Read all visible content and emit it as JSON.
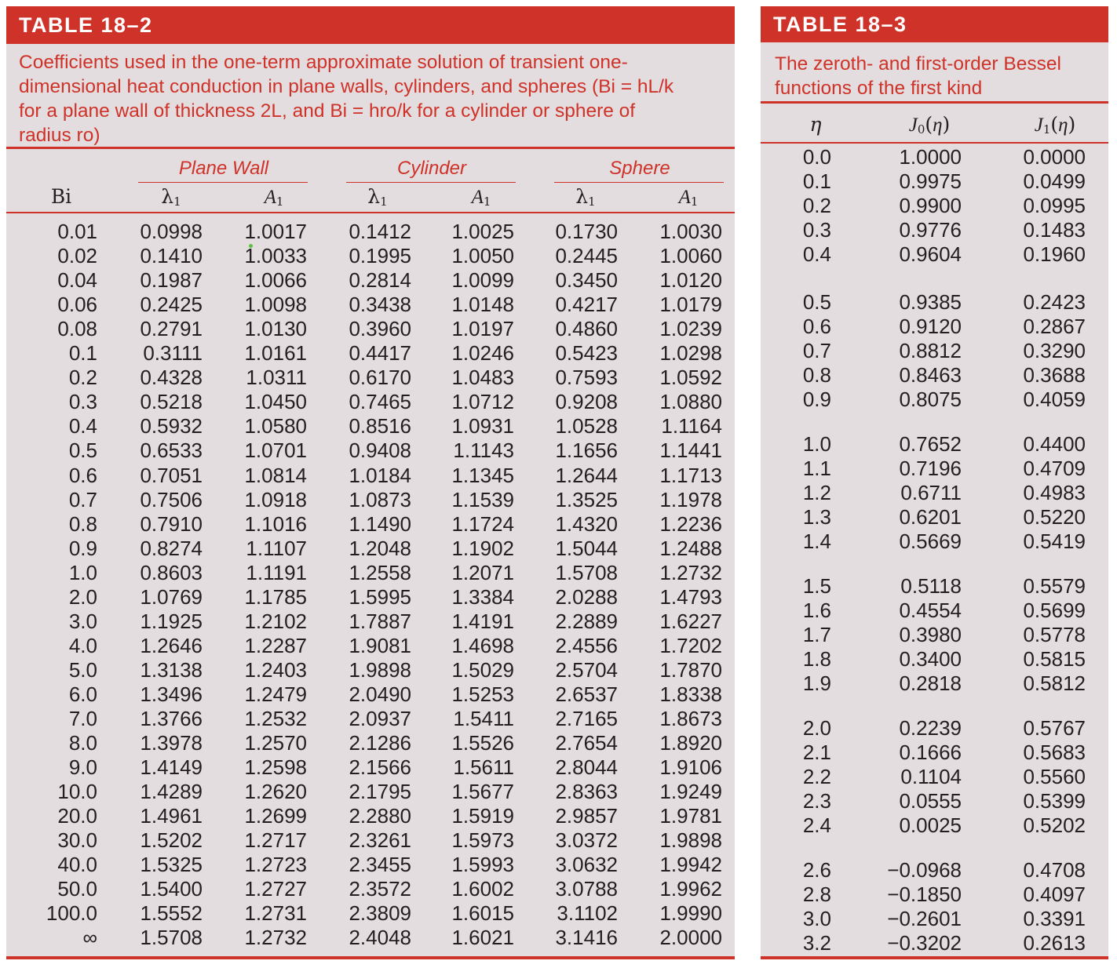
{
  "table_18_2": {
    "title": "TABLE 18–2",
    "caption_lines": [
      "Coefficients used in the one-term approximate solution of transient one-",
      "dimensional heat conduction in plane walls, cylinders, and spheres (Bi = hL/k",
      "for a plane wall of thickness 2L, and Bi = hro/k for a cylinder or sphere of",
      "radius ro)"
    ],
    "groups": [
      "Plane Wall",
      "Cylinder",
      "Sphere"
    ],
    "headers": [
      "Bi",
      "λ1",
      "A1",
      "λ1",
      "A1",
      "λ1",
      "A1"
    ],
    "rows": [
      [
        "0.01",
        "0.0998",
        "1.0017",
        "0.1412",
        "1.0025",
        "0.1730",
        "1.0030"
      ],
      [
        "0.02",
        "0.1410",
        "1.0033",
        "0.1995",
        "1.0050",
        "0.2445",
        "1.0060"
      ],
      [
        "0.04",
        "0.1987",
        "1.0066",
        "0.2814",
        "1.0099",
        "0.3450",
        "1.0120"
      ],
      [
        "0.06",
        "0.2425",
        "1.0098",
        "0.3438",
        "1.0148",
        "0.4217",
        "1.0179"
      ],
      [
        "0.08",
        "0.2791",
        "1.0130",
        "0.3960",
        "1.0197",
        "0.4860",
        "1.0239"
      ],
      [
        "0.1",
        "0.3111",
        "1.0161",
        "0.4417",
        "1.0246",
        "0.5423",
        "1.0298"
      ],
      [
        "0.2",
        "0.4328",
        "1.0311",
        "0.6170",
        "1.0483",
        "0.7593",
        "1.0592"
      ],
      [
        "0.3",
        "0.5218",
        "1.0450",
        "0.7465",
        "1.0712",
        "0.9208",
        "1.0880"
      ],
      [
        "0.4",
        "0.5932",
        "1.0580",
        "0.8516",
        "1.0931",
        "1.0528",
        "1.1164"
      ],
      [
        "0.5",
        "0.6533",
        "1.0701",
        "0.9408",
        "1.1143",
        "1.1656",
        "1.1441"
      ],
      [
        "0.6",
        "0.7051",
        "1.0814",
        "1.0184",
        "1.1345",
        "1.2644",
        "1.1713"
      ],
      [
        "0.7",
        "0.7506",
        "1.0918",
        "1.0873",
        "1.1539",
        "1.3525",
        "1.1978"
      ],
      [
        "0.8",
        "0.7910",
        "1.1016",
        "1.1490",
        "1.1724",
        "1.4320",
        "1.2236"
      ],
      [
        "0.9",
        "0.8274",
        "1.1107",
        "1.2048",
        "1.1902",
        "1.5044",
        "1.2488"
      ],
      [
        "1.0",
        "0.8603",
        "1.1191",
        "1.2558",
        "1.2071",
        "1.5708",
        "1.2732"
      ],
      [
        "2.0",
        "1.0769",
        "1.1785",
        "1.5995",
        "1.3384",
        "2.0288",
        "1.4793"
      ],
      [
        "3.0",
        "1.1925",
        "1.2102",
        "1.7887",
        "1.4191",
        "2.2889",
        "1.6227"
      ],
      [
        "4.0",
        "1.2646",
        "1.2287",
        "1.9081",
        "1.4698",
        "2.4556",
        "1.7202"
      ],
      [
        "5.0",
        "1.3138",
        "1.2403",
        "1.9898",
        "1.5029",
        "2.5704",
        "1.7870"
      ],
      [
        "6.0",
        "1.3496",
        "1.2479",
        "2.0490",
        "1.5253",
        "2.6537",
        "1.8338"
      ],
      [
        "7.0",
        "1.3766",
        "1.2532",
        "2.0937",
        "1.5411",
        "2.7165",
        "1.8673"
      ],
      [
        "8.0",
        "1.3978",
        "1.2570",
        "2.1286",
        "1.5526",
        "2.7654",
        "1.8920"
      ],
      [
        "9.0",
        "1.4149",
        "1.2598",
        "2.1566",
        "1.5611",
        "2.8044",
        "1.9106"
      ],
      [
        "10.0",
        "1.4289",
        "1.2620",
        "2.1795",
        "1.5677",
        "2.8363",
        "1.9249"
      ],
      [
        "20.0",
        "1.4961",
        "1.2699",
        "2.2880",
        "1.5919",
        "2.9857",
        "1.9781"
      ],
      [
        "30.0",
        "1.5202",
        "1.2717",
        "2.3261",
        "1.5973",
        "3.0372",
        "1.9898"
      ],
      [
        "40.0",
        "1.5325",
        "1.2723",
        "2.3455",
        "1.5993",
        "3.0632",
        "1.9942"
      ],
      [
        "50.0",
        "1.5400",
        "1.2727",
        "2.3572",
        "1.6002",
        "3.0788",
        "1.9962"
      ],
      [
        "100.0",
        "1.5552",
        "1.2731",
        "2.3809",
        "1.6015",
        "3.1102",
        "1.9990"
      ],
      [
        "∞",
        "1.5708",
        "1.2732",
        "2.4048",
        "1.6021",
        "3.1416",
        "2.0000"
      ]
    ]
  },
  "table_18_3": {
    "title": "TABLE 18–3",
    "caption_lines": [
      "The zeroth- and first-order Bessel",
      "functions of the first kind"
    ],
    "headers": [
      "η",
      "J0(η)",
      "J1(η)"
    ],
    "blocks": [
      [
        [
          "0.0",
          "1.0000",
          "0.0000"
        ],
        [
          "0.1",
          "0.9975",
          "0.0499"
        ],
        [
          "0.2",
          "0.9900",
          "0.0995"
        ],
        [
          "0.3",
          "0.9776",
          "0.1483"
        ],
        [
          "0.4",
          "0.9604",
          "0.1960"
        ]
      ],
      [
        [
          "0.5",
          "0.9385",
          "0.2423"
        ],
        [
          "0.6",
          "0.9120",
          "0.2867"
        ],
        [
          "0.7",
          "0.8812",
          "0.3290"
        ],
        [
          "0.8",
          "0.8463",
          "0.3688"
        ],
        [
          "0.9",
          "0.8075",
          "0.4059"
        ]
      ],
      [
        [
          "1.0",
          "0.7652",
          "0.4400"
        ],
        [
          "1.1",
          "0.7196",
          "0.4709"
        ],
        [
          "1.2",
          "0.6711",
          "0.4983"
        ],
        [
          "1.3",
          "0.6201",
          "0.5220"
        ],
        [
          "1.4",
          "0.5669",
          "0.5419"
        ]
      ],
      [
        [
          "1.5",
          "0.5118",
          "0.5579"
        ],
        [
          "1.6",
          "0.4554",
          "0.5699"
        ],
        [
          "1.7",
          "0.3980",
          "0.5778"
        ],
        [
          "1.8",
          "0.3400",
          "0.5815"
        ],
        [
          "1.9",
          "0.2818",
          "0.5812"
        ]
      ],
      [
        [
          "2.0",
          "0.2239",
          "0.5767"
        ],
        [
          "2.1",
          "0.1666",
          "0.5683"
        ],
        [
          "2.2",
          "0.1104",
          "0.5560"
        ],
        [
          "2.3",
          "0.0555",
          "0.5399"
        ],
        [
          "2.4",
          "0.0025",
          "0.5202"
        ]
      ],
      [
        [
          "2.6",
          "−0.0968",
          "0.4708"
        ],
        [
          "2.8",
          "−0.1850",
          "0.4097"
        ],
        [
          "3.0",
          "−0.2601",
          "0.3391"
        ],
        [
          "3.2",
          "−0.3202",
          "0.2613"
        ]
      ]
    ]
  },
  "colors": {
    "accent": "#cf3228",
    "panel": "#e3dddf",
    "text": "#231f20"
  }
}
